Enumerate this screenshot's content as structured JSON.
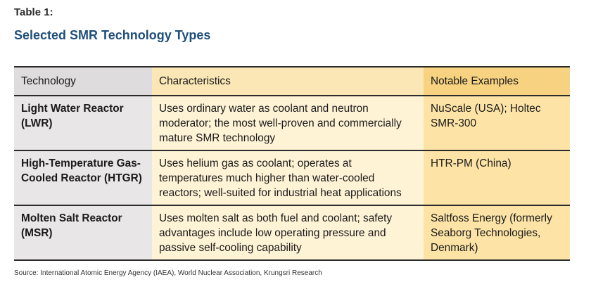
{
  "header": {
    "table_label": "Table 1:",
    "title": "Selected SMR Technology Types"
  },
  "table": {
    "columns": [
      "Technology",
      "Characteristics",
      "Notable Examples"
    ],
    "rows": [
      {
        "technology": "Light Water Reactor (LWR)",
        "characteristics": "Uses ordinary water as coolant and neutron moderator; the most well-proven and commercially mature SMR technology",
        "examples": "NuScale (USA); Holtec SMR-300"
      },
      {
        "technology": "High-Temperature Gas-Cooled Reactor (HTGR)",
        "characteristics": "Uses helium gas as coolant; operates at temperatures much higher than water-cooled reactors; well-suited for industrial heat applications",
        "examples": "HTR-PM (China)"
      },
      {
        "technology": "Molten Salt Reactor (MSR)",
        "characteristics": "Uses molten salt as both fuel and coolant; safety advantages include low operating pressure and passive self-cooling capability",
        "examples": "Saltfoss Energy (formerly Seaborg Technologies, Denmark)"
      }
    ]
  },
  "footer": {
    "source": "Source: International Atomic Energy Agency (IAEA), World Nuclear Association, Krungsri Research"
  },
  "colors": {
    "title": "#1f4e79",
    "technology_column": "#e8e6e6",
    "characteristics_column": "#fff3d6",
    "examples_column": "#fde4a6"
  }
}
